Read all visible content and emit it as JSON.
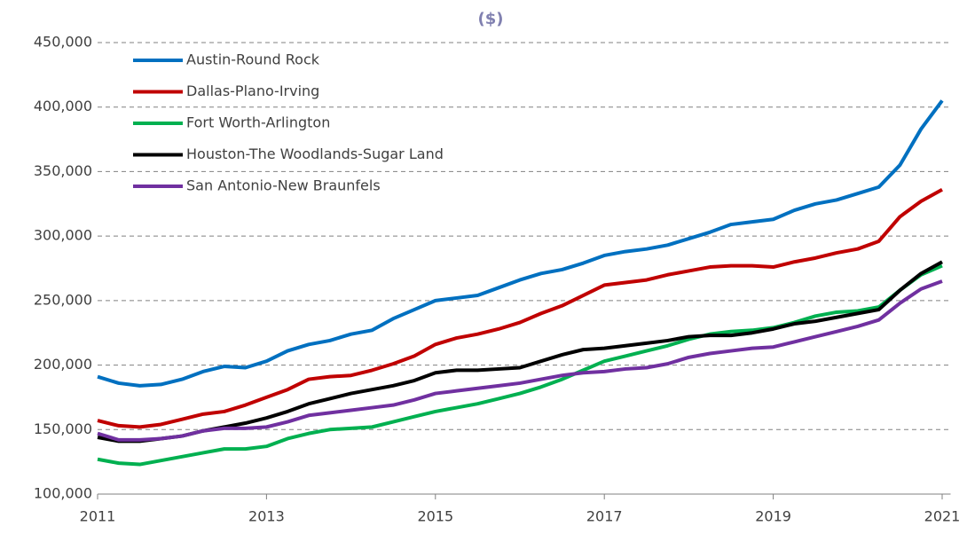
{
  "chart_data": {
    "type": "line",
    "title": "($)",
    "x": [
      2011,
      2011.25,
      2011.5,
      2011.75,
      2012,
      2012.25,
      2012.5,
      2012.75,
      2013,
      2013.25,
      2013.5,
      2013.75,
      2014,
      2014.25,
      2014.5,
      2014.75,
      2015,
      2015.25,
      2015.5,
      2015.75,
      2016,
      2016.25,
      2016.5,
      2016.75,
      2017,
      2017.25,
      2017.5,
      2017.75,
      2018,
      2018.25,
      2018.5,
      2018.75,
      2019,
      2019.25,
      2019.5,
      2019.75,
      2020,
      2020.25,
      2020.5,
      2020.75,
      2021
    ],
    "series": [
      {
        "name": "Austin-Round Rock",
        "color": "#0070c0",
        "values": [
          191000,
          186000,
          184000,
          185000,
          189000,
          195000,
          199000,
          198000,
          203000,
          211000,
          216000,
          219000,
          224000,
          227000,
          236000,
          243000,
          250000,
          252000,
          254000,
          260000,
          266000,
          271000,
          274000,
          279000,
          285000,
          288000,
          290000,
          293000,
          298000,
          303000,
          309000,
          311000,
          313000,
          320000,
          325000,
          328000,
          333000,
          338000,
          355000,
          383000,
          405000
        ]
      },
      {
        "name": "Dallas-Plano-Irving",
        "color": "#c00000",
        "values": [
          157000,
          153000,
          152000,
          154000,
          158000,
          162000,
          164000,
          169000,
          175000,
          181000,
          189000,
          191000,
          192000,
          196000,
          201000,
          207000,
          216000,
          221000,
          224000,
          228000,
          233000,
          240000,
          246000,
          254000,
          262000,
          264000,
          266000,
          270000,
          273000,
          276000,
          277000,
          277000,
          276000,
          280000,
          283000,
          287000,
          290000,
          296000,
          315000,
          327000,
          336000
        ]
      },
      {
        "name": "Fort Worth-Arlington",
        "color": "#00b050",
        "values": [
          127000,
          124000,
          123000,
          126000,
          129000,
          132000,
          135000,
          135000,
          137000,
          143000,
          147000,
          150000,
          151000,
          152000,
          156000,
          160000,
          164000,
          167000,
          170000,
          174000,
          178000,
          183000,
          189000,
          196000,
          203000,
          207000,
          211000,
          215000,
          220000,
          224000,
          226000,
          227000,
          229000,
          233000,
          238000,
          241000,
          242000,
          245000,
          258000,
          270000,
          277000
        ]
      },
      {
        "name": "Houston-The Woodlands-Sugar Land",
        "color": "#000000",
        "values": [
          144000,
          141000,
          141000,
          143000,
          145000,
          149000,
          152000,
          155000,
          159000,
          164000,
          170000,
          174000,
          178000,
          181000,
          184000,
          188000,
          194000,
          196000,
          196000,
          197000,
          198000,
          203000,
          208000,
          212000,
          213000,
          215000,
          217000,
          219000,
          222000,
          223000,
          223000,
          225000,
          228000,
          232000,
          234000,
          237000,
          240000,
          243000,
          258000,
          271000,
          280000
        ]
      },
      {
        "name": "San Antonio-New Braunfels",
        "color": "#7030a0",
        "values": [
          147000,
          142000,
          142000,
          143000,
          145000,
          149000,
          151000,
          151000,
          152000,
          156000,
          161000,
          163000,
          165000,
          167000,
          169000,
          173000,
          178000,
          180000,
          182000,
          184000,
          186000,
          189000,
          192000,
          194000,
          195000,
          197000,
          198000,
          201000,
          206000,
          209000,
          211000,
          213000,
          214000,
          218000,
          222000,
          226000,
          230000,
          235000,
          248000,
          259000,
          265000
        ]
      }
    ],
    "xlim": [
      2011,
      2021.1
    ],
    "xticks": [
      2011,
      2013,
      2015,
      2017,
      2019,
      2021
    ],
    "ylim": [
      100000,
      450000
    ],
    "yticks": [
      {
        "value": 100000,
        "label": "100,000"
      },
      {
        "value": 150000,
        "label": "150,000"
      },
      {
        "value": 200000,
        "label": "200,000"
      },
      {
        "value": 250000,
        "label": "250,000"
      },
      {
        "value": 300000,
        "label": "300,000"
      },
      {
        "value": 350000,
        "label": "350,000"
      },
      {
        "value": 400000,
        "label": "400,000"
      },
      {
        "value": 450000,
        "label": "450,000"
      }
    ],
    "grid": true,
    "legend": "top-left"
  }
}
